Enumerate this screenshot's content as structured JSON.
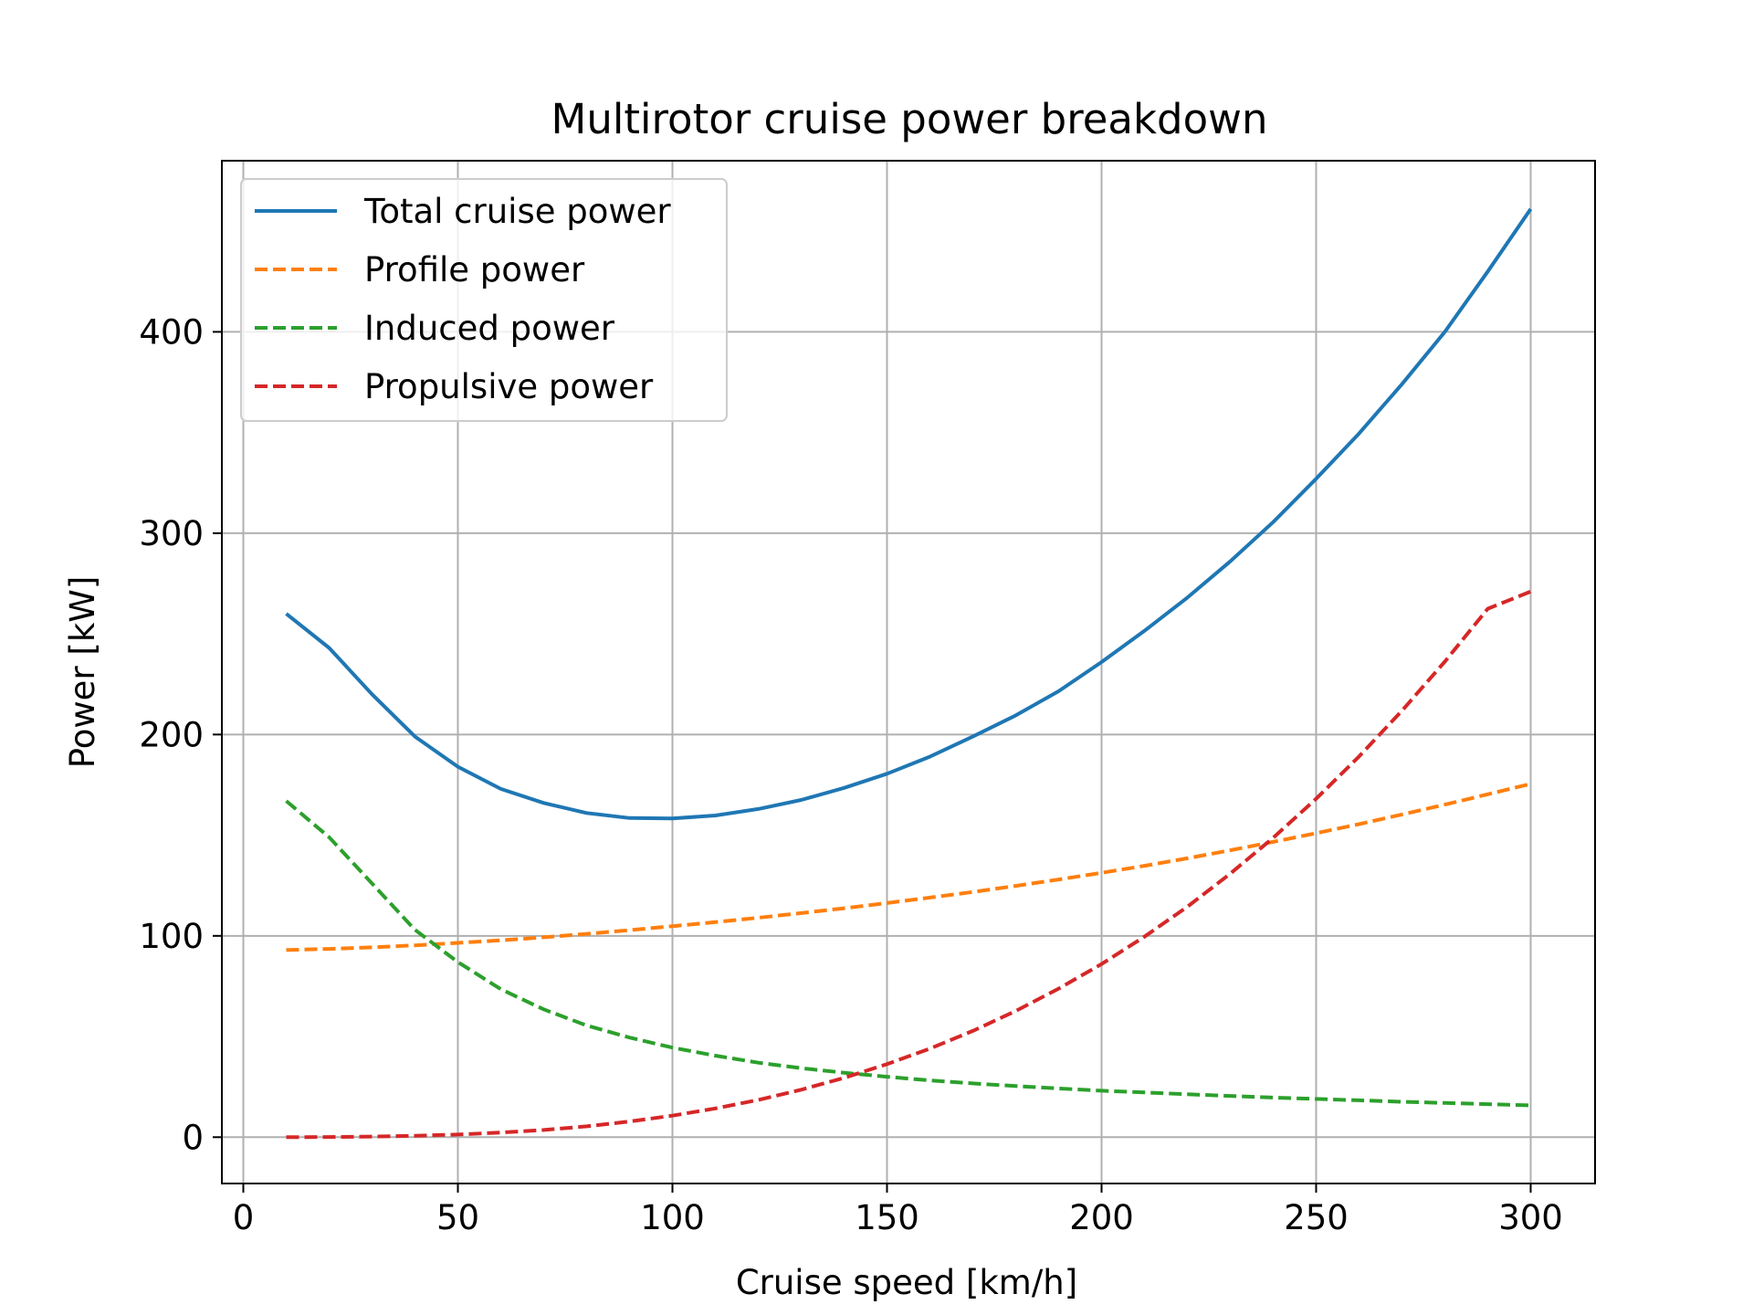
{
  "chart_data": {
    "type": "line",
    "title": "Multirotor cruise power breakdown",
    "xlabel": "Cruise speed [km/h]",
    "ylabel": "Power [kW]",
    "xlim": [
      -5,
      315
    ],
    "ylim": [
      -23,
      485
    ],
    "xticks": [
      0,
      50,
      100,
      150,
      200,
      250,
      300
    ],
    "yticks": [
      0,
      100,
      200,
      300,
      400
    ],
    "grid": true,
    "legend_position": "upper-left",
    "x": [
      10,
      20,
      30,
      40,
      50,
      60,
      70,
      80,
      90,
      100,
      110,
      120,
      130,
      140,
      150,
      160,
      170,
      180,
      190,
      200,
      210,
      220,
      230,
      240,
      250,
      260,
      270,
      280,
      290,
      300
    ],
    "series": [
      {
        "name": "Total cruise power",
        "color": "#1f77b4",
        "dash": "solid",
        "values": [
          260,
          243,
          220,
          199,
          184,
          173,
          166,
          161,
          158.5,
          158.3,
          159.8,
          163,
          167.5,
          173.5,
          180.5,
          189,
          199,
          209.5,
          221.5,
          236,
          251.5,
          268,
          286,
          305.5,
          327,
          349.5,
          374,
          400,
          430,
          461
        ]
      },
      {
        "name": "Profile power",
        "color": "#ff7f0e",
        "dash": "dashed",
        "values": [
          93,
          93.5,
          94.3,
          95.3,
          96.5,
          97.8,
          99.3,
          101,
          102.8,
          104.8,
          106.8,
          109,
          111.3,
          113.7,
          116.3,
          119,
          121.8,
          124.8,
          128,
          131.3,
          134.8,
          138.5,
          142.5,
          146.7,
          151,
          155.5,
          160.3,
          165.2,
          170.3,
          175.5
        ]
      },
      {
        "name": "Induced power",
        "color": "#2ca02c",
        "dash": "dashed",
        "values": [
          167,
          149,
          126,
          103,
          87,
          73.5,
          63.5,
          55.5,
          49.5,
          44.5,
          40.5,
          37,
          34.3,
          32,
          30,
          28.2,
          26.7,
          25.4,
          24.2,
          23.1,
          22.2,
          21.3,
          20.5,
          19.7,
          19,
          18.3,
          17.6,
          17,
          16.4,
          15.8
        ]
      },
      {
        "name": "Propulsive power",
        "color": "#d62728",
        "dash": "dashed",
        "values": [
          0,
          0.1,
          0.3,
          0.7,
          1.3,
          2.3,
          3.6,
          5.4,
          7.8,
          10.7,
          14.3,
          18.5,
          23.6,
          29.5,
          36.3,
          44,
          52.8,
          62.7,
          73.8,
          86,
          99.6,
          114.5,
          130.9,
          148.7,
          168.1,
          189.1,
          211.8,
          236.2,
          262.5,
          271
        ]
      }
    ]
  }
}
